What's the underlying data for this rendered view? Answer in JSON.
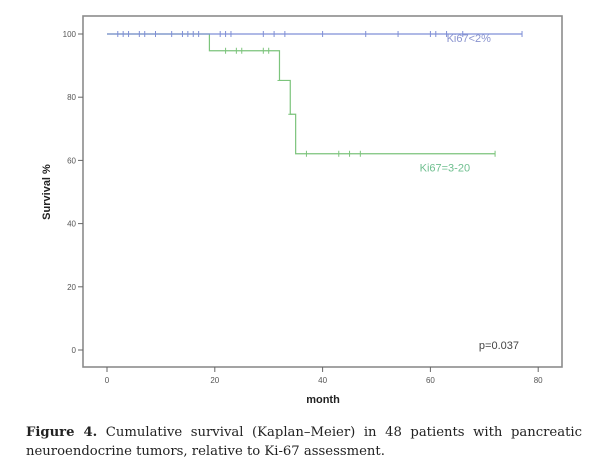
{
  "chart_data": {
    "type": "line",
    "subtype": "kaplan-meier-step",
    "xlabel": "month",
    "ylabel": "Survival %",
    "xlim": [
      -4,
      85
    ],
    "ylim": [
      -5,
      106
    ],
    "x_ticks": [
      0,
      20,
      40,
      60,
      80
    ],
    "y_ticks": [
      0,
      20,
      40,
      60,
      80,
      100
    ],
    "grid": false,
    "series": [
      {
        "name": "Ki67<2%",
        "color": "#7f8fd6",
        "steps": [
          [
            0,
            100
          ],
          [
            77,
            100
          ]
        ],
        "censored": [
          {
            "t": 2.0,
            "s": 100
          },
          {
            "t": 3.0,
            "s": 100
          },
          {
            "t": 4.0,
            "s": 100
          },
          {
            "t": 6.0,
            "s": 100
          },
          {
            "t": 7.0,
            "s": 100
          },
          {
            "t": 9.0,
            "s": 100
          },
          {
            "t": 12.0,
            "s": 100
          },
          {
            "t": 14.0,
            "s": 100
          },
          {
            "t": 15.0,
            "s": 100
          },
          {
            "t": 16.0,
            "s": 100
          },
          {
            "t": 17.0,
            "s": 100
          },
          {
            "t": 21.0,
            "s": 100
          },
          {
            "t": 22.0,
            "s": 100
          },
          {
            "t": 23.0,
            "s": 100
          },
          {
            "t": 29.0,
            "s": 100
          },
          {
            "t": 31.0,
            "s": 100
          },
          {
            "t": 33.0,
            "s": 100
          },
          {
            "t": 40.0,
            "s": 100
          },
          {
            "t": 48.0,
            "s": 100
          },
          {
            "t": 54.0,
            "s": 100
          },
          {
            "t": 60.0,
            "s": 100
          },
          {
            "t": 61.0,
            "s": 100
          },
          {
            "t": 63.0,
            "s": 100
          },
          {
            "t": 66.0,
            "s": 100
          },
          {
            "t": 77.0,
            "s": 100
          }
        ]
      },
      {
        "name": "Ki67=3-20",
        "color": "#7cc47c",
        "steps": [
          [
            0,
            100
          ],
          [
            19,
            94.7
          ],
          [
            32,
            85.3
          ],
          [
            34,
            74.6
          ],
          [
            35,
            62.1
          ],
          [
            72,
            62.1
          ]
        ],
        "censored": [
          {
            "t": 22.0,
            "s": 94.7
          },
          {
            "t": 24.0,
            "s": 94.7
          },
          {
            "t": 25.0,
            "s": 94.7
          },
          {
            "t": 29.0,
            "s": 94.7
          },
          {
            "t": 30.0,
            "s": 94.7
          },
          {
            "t": 37.0,
            "s": 62.1
          },
          {
            "t": 43.0,
            "s": 62.1
          },
          {
            "t": 45.0,
            "s": 62.1
          },
          {
            "t": 47.0,
            "s": 62.1
          },
          {
            "t": 72.0,
            "s": 62.1
          }
        ],
        "events_marked": [
          {
            "t": 32.0,
            "s": 85.3
          },
          {
            "t": 34.0,
            "s": 74.6
          }
        ]
      }
    ],
    "annotations": [
      {
        "text": "Ki67<2%",
        "series": 0,
        "color": "#8a94cf",
        "at": {
          "t": 63,
          "s": 97.5
        }
      },
      {
        "text": "Ki67=3-20",
        "series": 1,
        "color": "#6fbf8f",
        "at": {
          "t": 58,
          "s": 56.5
        }
      },
      {
        "text": "p=0.037",
        "color": "#444444",
        "at": {
          "t": 69,
          "s": 0.3
        }
      }
    ]
  },
  "caption": {
    "label": "Figure 4.",
    "text": " Cumulative survival (Kaplan–Meier) in 48 patients with pancreatic neuroendocrine tumors, relative to Ki-67 assessment."
  }
}
